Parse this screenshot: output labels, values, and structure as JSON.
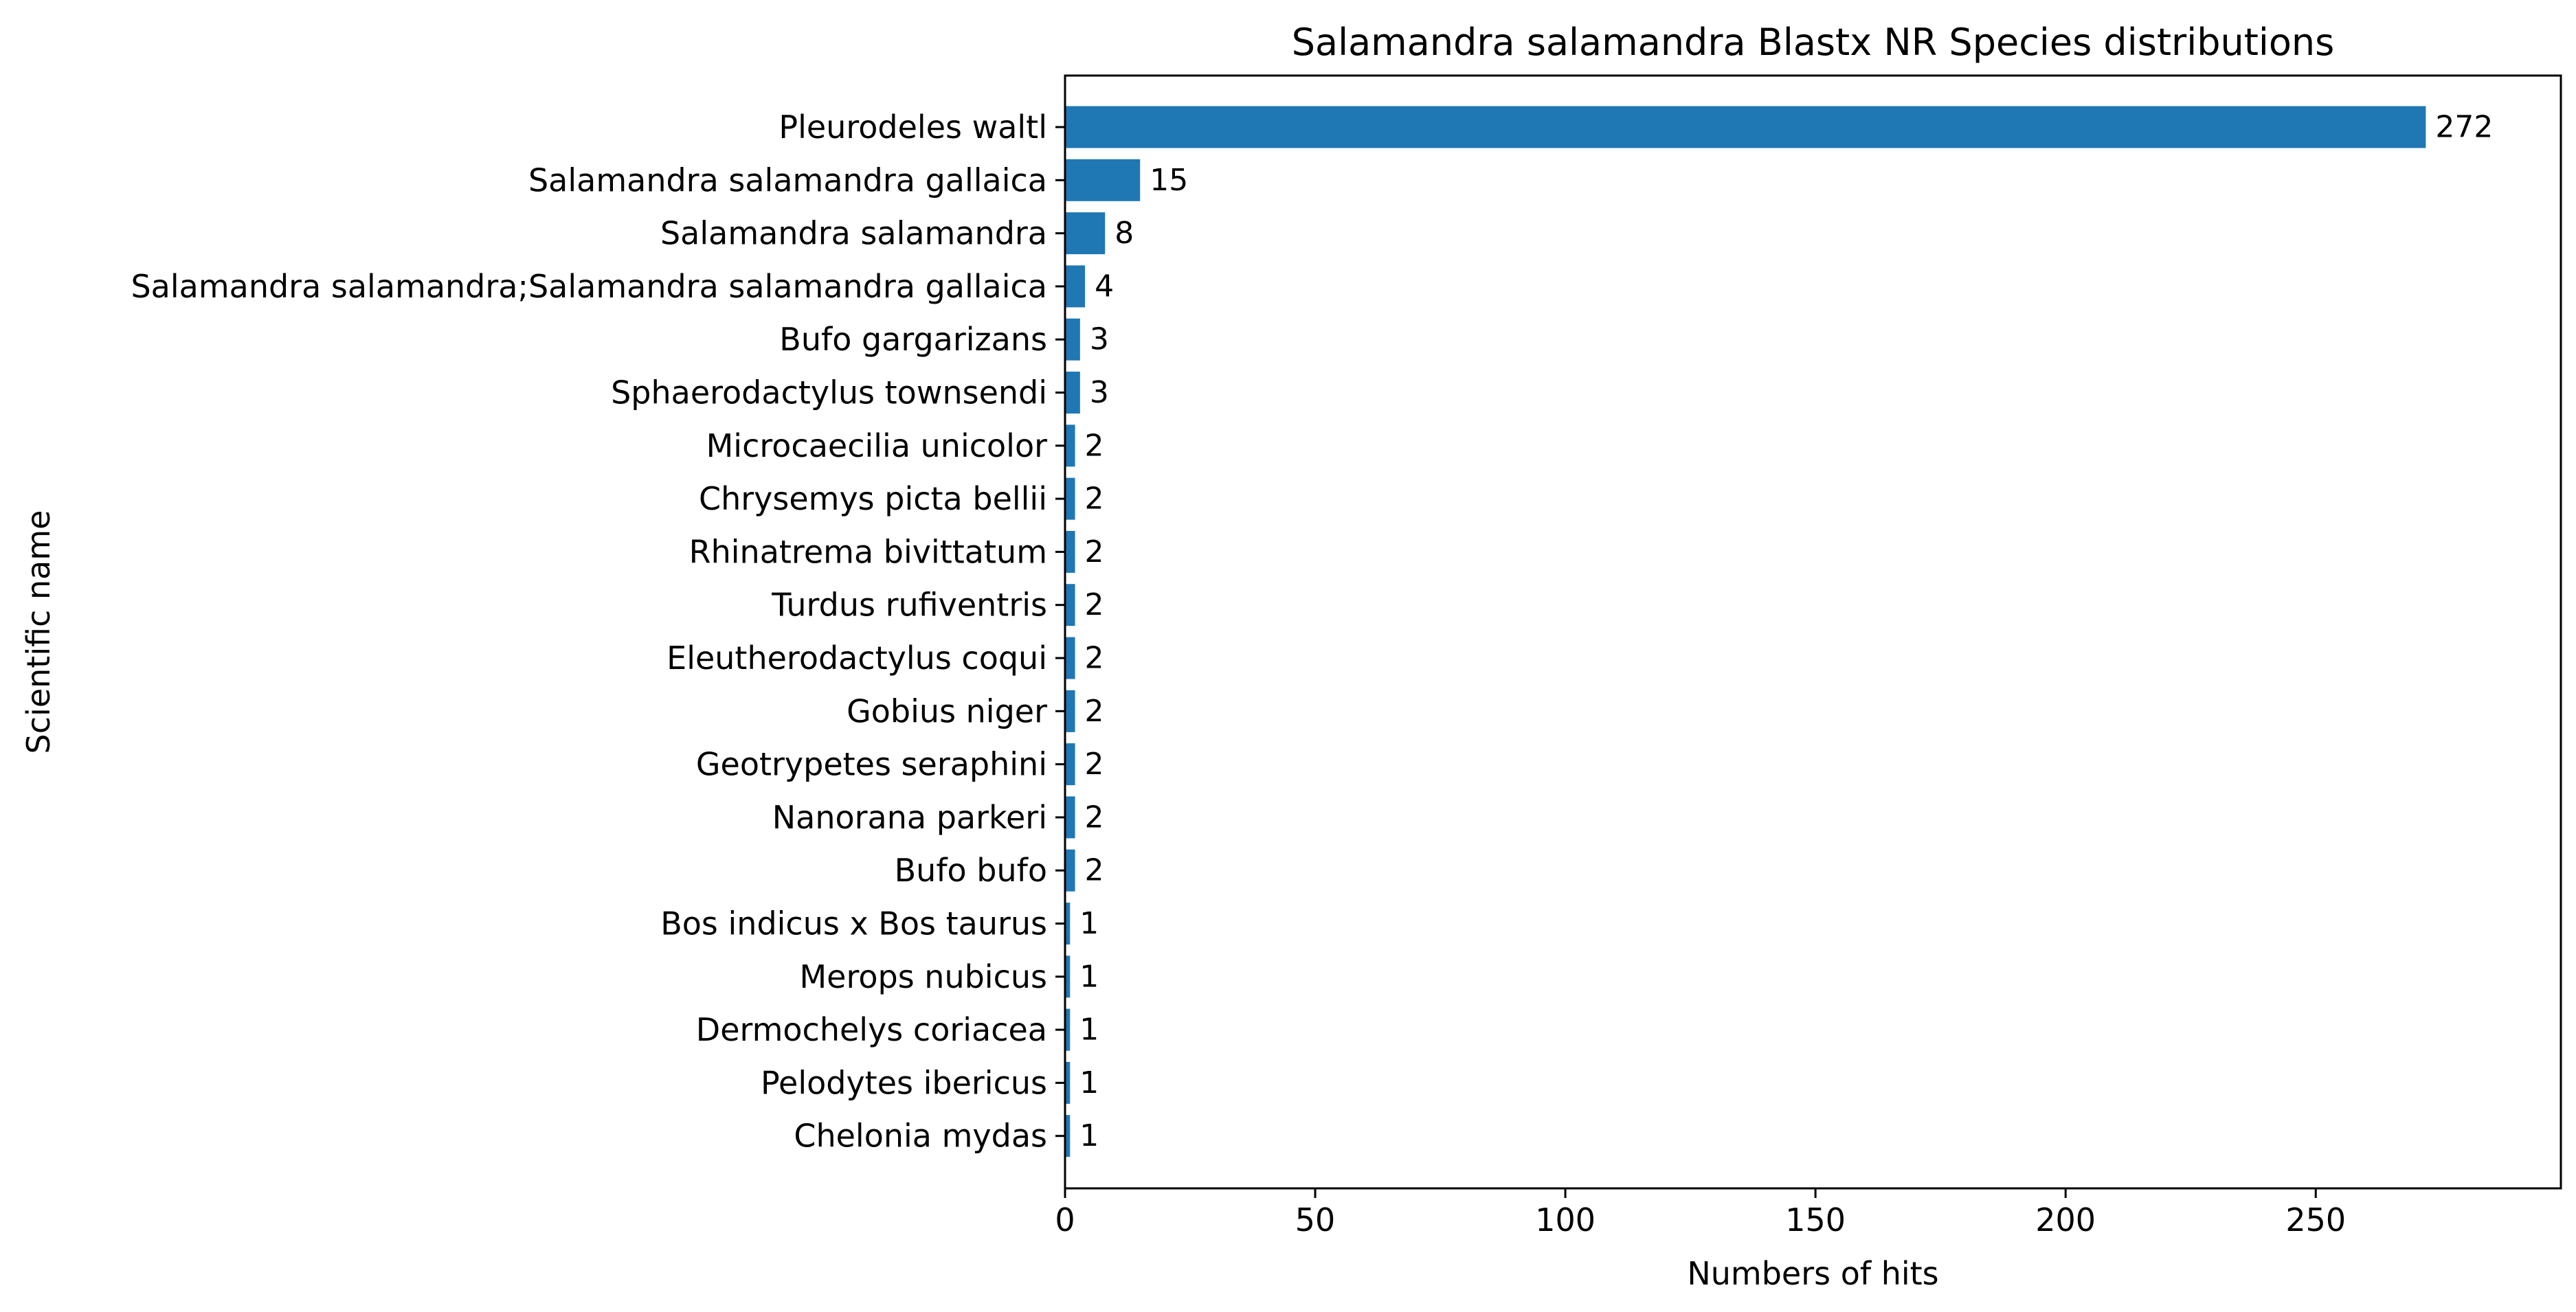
{
  "chart_data": {
    "type": "bar",
    "orientation": "horizontal",
    "title": "Salamandra salamandra Blastx NR Species distributions",
    "xlabel": "Numbers of hits",
    "ylabel": "Scientific name",
    "xlim": [
      0,
      299
    ],
    "xticks": [
      0,
      50,
      100,
      150,
      200,
      250
    ],
    "categories": [
      "Pleurodeles waltl",
      "Salamandra salamandra gallaica",
      "Salamandra salamandra",
      "Salamandra salamandra;Salamandra salamandra gallaica",
      "Bufo gargarizans",
      "Sphaerodactylus townsendi",
      "Microcaecilia unicolor",
      "Chrysemys picta bellii",
      "Rhinatrema bivittatum",
      "Turdus rufiventris",
      "Eleutherodactylus coqui",
      "Gobius niger",
      "Geotrypetes seraphini",
      "Nanorana parkeri",
      "Bufo bufo",
      "Bos indicus x Bos taurus",
      "Merops nubicus",
      "Dermochelys coriacea",
      "Pelodytes ibericus",
      "Chelonia mydas"
    ],
    "values": [
      272,
      15,
      8,
      4,
      3,
      3,
      2,
      2,
      2,
      2,
      2,
      2,
      2,
      2,
      2,
      1,
      1,
      1,
      1,
      1
    ],
    "bar_color": "#1f77b4",
    "grid": false,
    "data_labels": true
  }
}
